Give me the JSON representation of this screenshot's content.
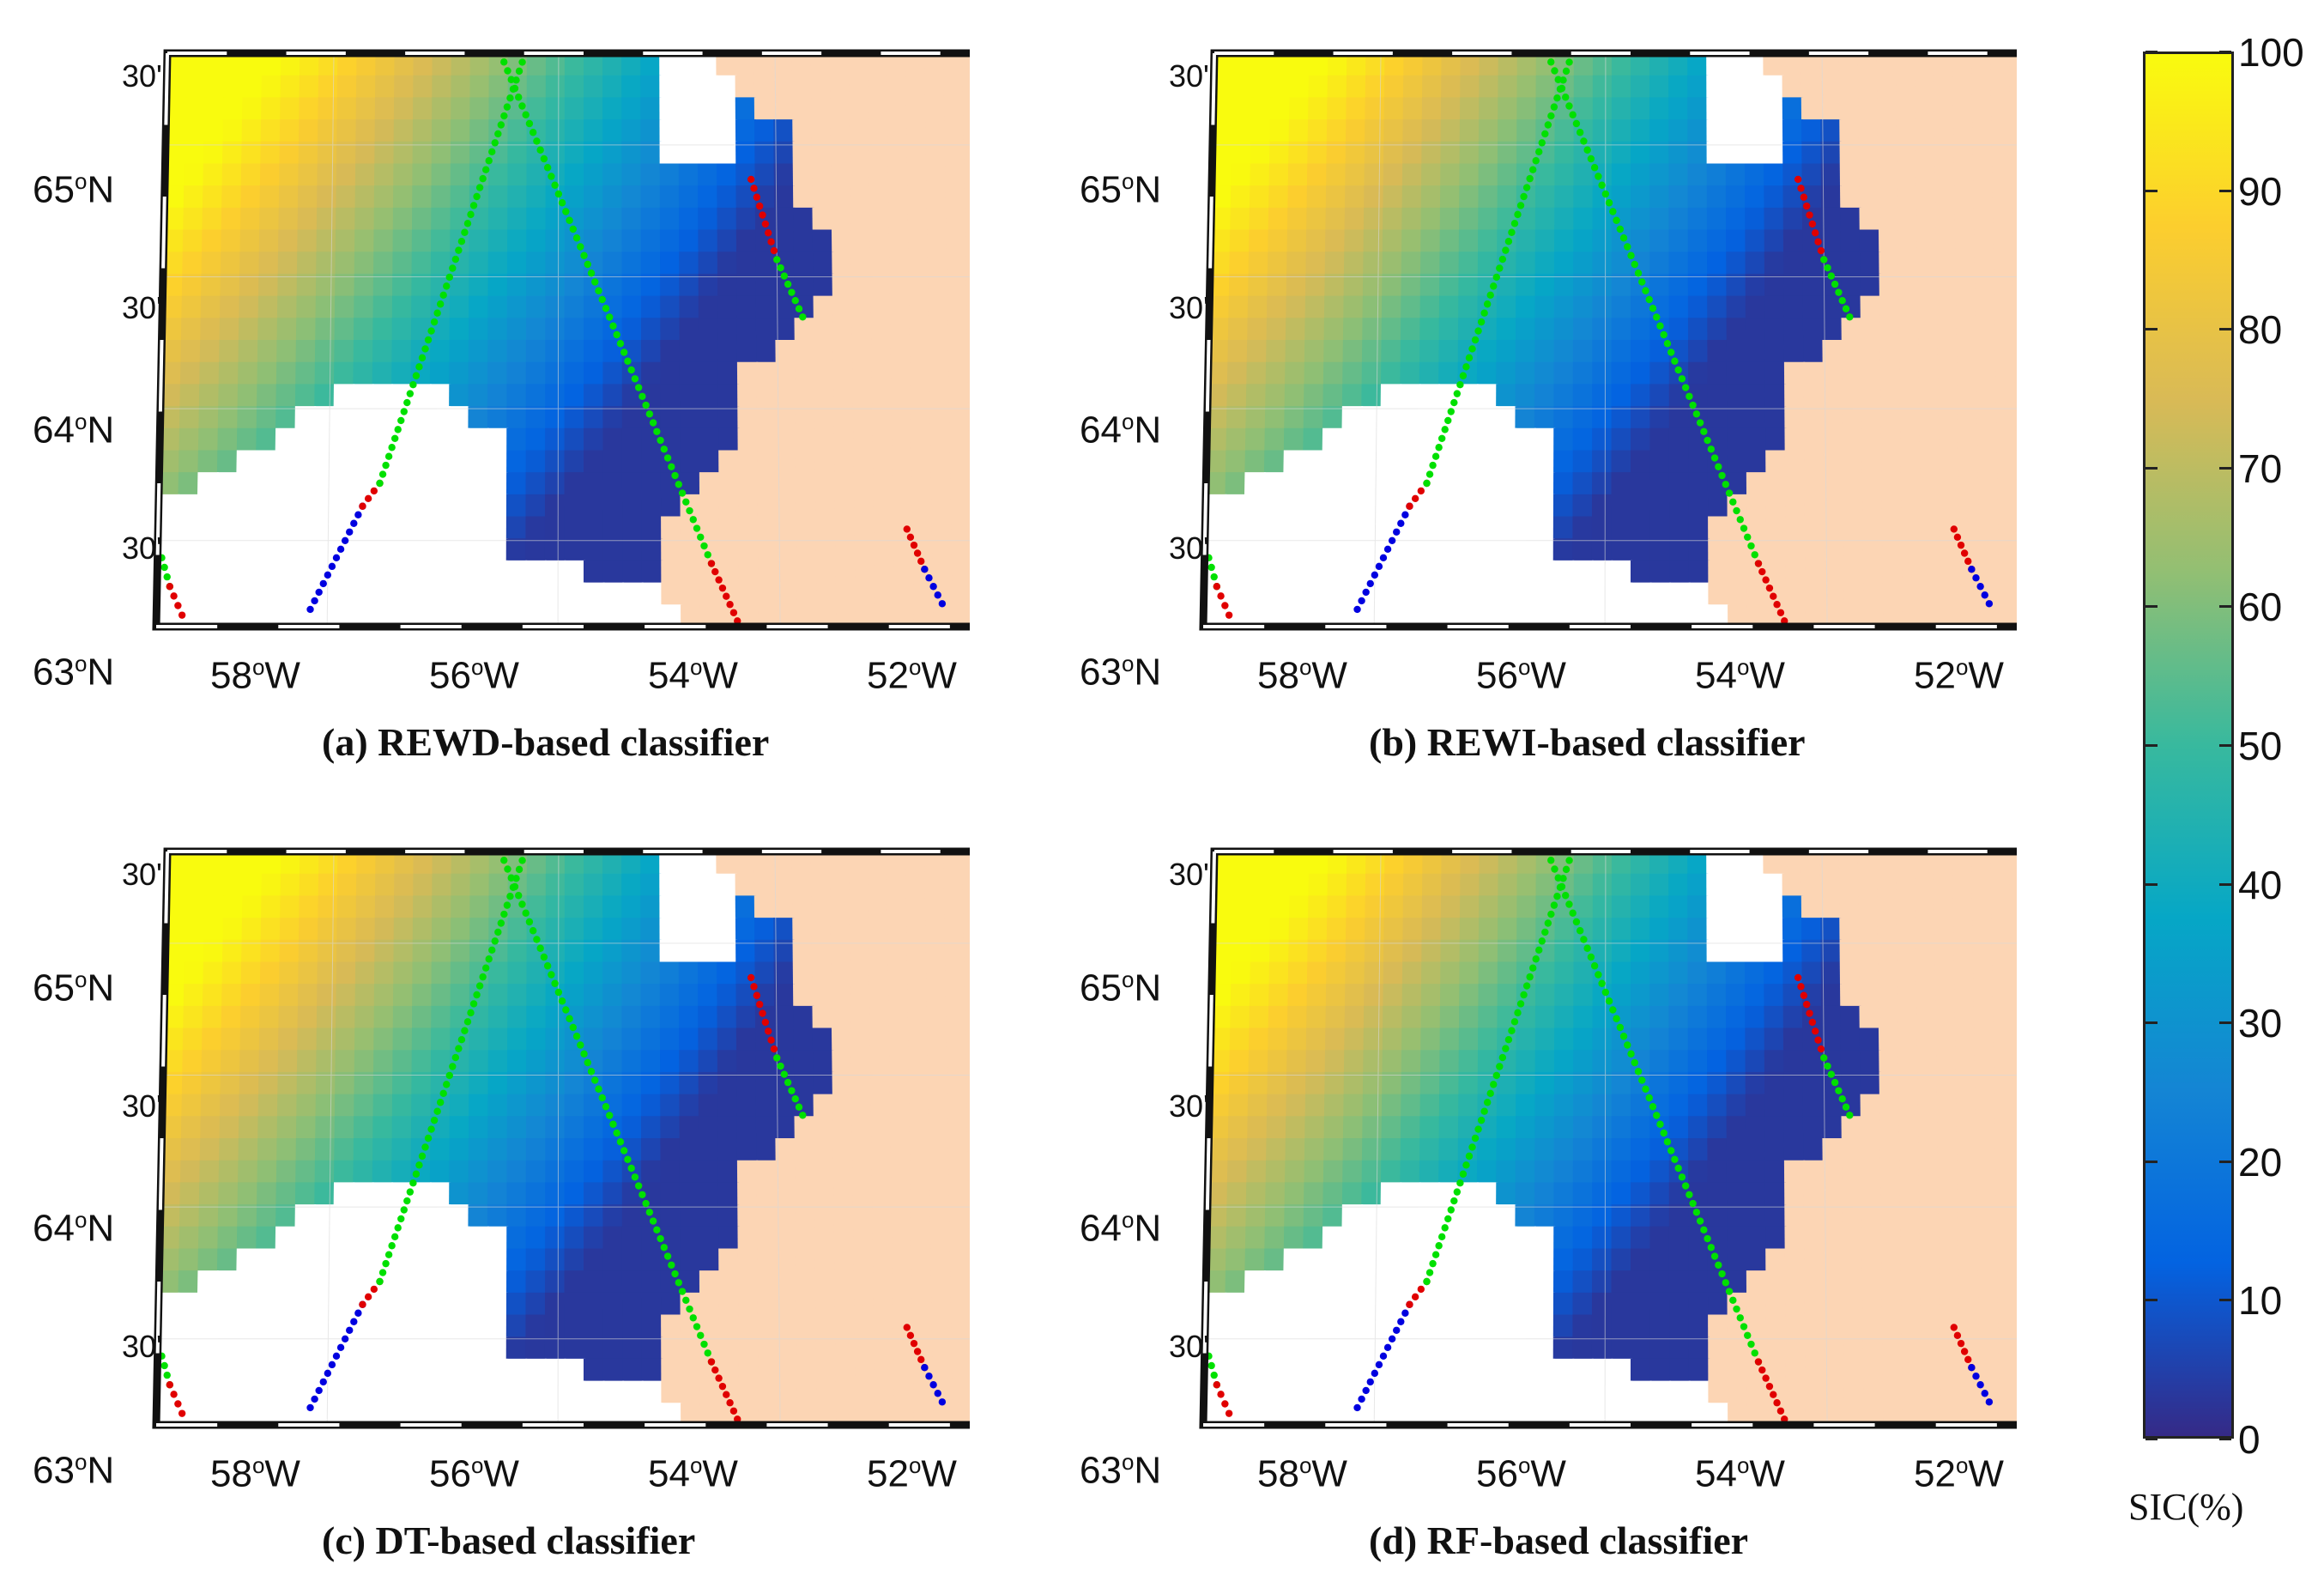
{
  "panels": [
    {
      "id": "a",
      "caption": "(a) REWD-based classifier"
    },
    {
      "id": "b",
      "caption": "(b) REWI-based classifier"
    },
    {
      "id": "c",
      "caption": "(c) DT-based classifier"
    },
    {
      "id": "d",
      "caption": "(d) RF-based classifier"
    }
  ],
  "lat_labels": {
    "major": [
      {
        "deg": "65",
        "suffix": "N"
      },
      {
        "deg": "64",
        "suffix": "N"
      },
      {
        "deg": "63",
        "suffix": "N"
      }
    ],
    "minor": [
      "30'",
      "30'",
      "30'"
    ]
  },
  "lon_labels": [
    {
      "deg": "58",
      "suffix": "W"
    },
    {
      "deg": "56",
      "suffix": "W"
    },
    {
      "deg": "54",
      "suffix": "W"
    },
    {
      "deg": "52",
      "suffix": "W"
    }
  ],
  "degree_mark": "o",
  "colorbar": {
    "label": "SIC(%)",
    "ticks": [
      "100",
      "90",
      "80",
      "70",
      "60",
      "50",
      "40",
      "30",
      "20",
      "10",
      "0"
    ],
    "min": 0,
    "max": 100,
    "colormap": [
      "#352a87",
      "#0363e1",
      "#1485d4",
      "#06a7c6",
      "#38b99e",
      "#92bf73",
      "#d9ba56",
      "#fcce2e",
      "#f9fb0e"
    ]
  },
  "colors": {
    "land": "#fcd5b4",
    "no_data": "#ffffff",
    "track_green": "#00e000",
    "track_red": "#e00000",
    "track_blue": "#0000e0"
  }
}
